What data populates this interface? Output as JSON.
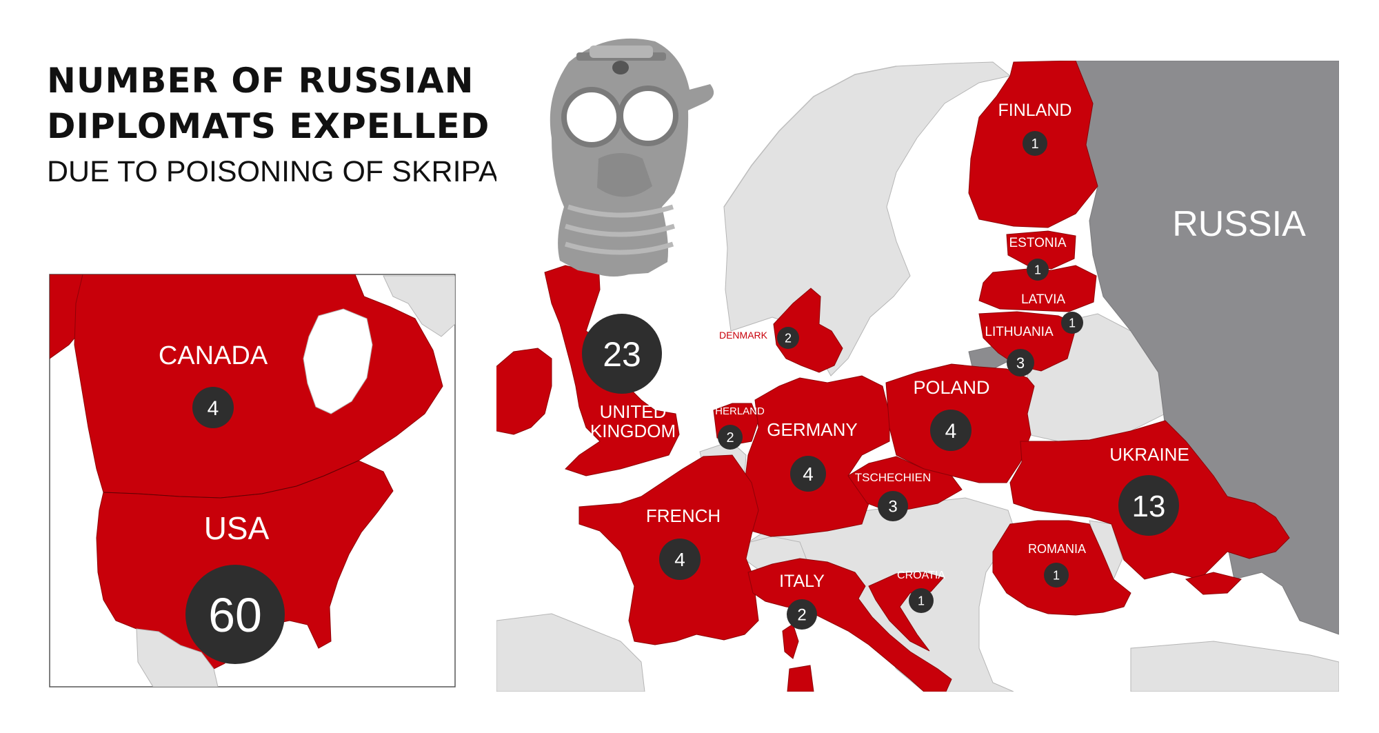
{
  "title": {
    "line1": "NUMBER OF RUSSIAN",
    "line2": "DIPLOMATS EXPELLED",
    "subtitle": "DUE TO POISONING OF SKRIPAL"
  },
  "colors": {
    "expelling_country": "#c8000a",
    "russia": "#8c8c8f",
    "other_country": "#e2e2e2",
    "sea": "#ffffff",
    "badge": "#2e2e2e",
    "label": "#ffffff",
    "gas_mask": "#9a9a9a"
  },
  "icons": [
    "gas-mask-icon"
  ],
  "russia_label": "RUSSIA",
  "countries": [
    {
      "id": "canada",
      "name": "CANADA",
      "expelled": 4
    },
    {
      "id": "usa",
      "name": "USA",
      "expelled": 60
    },
    {
      "id": "uk",
      "name": "UNITED KINGDOM",
      "name_lines": [
        "UNITED",
        "KINGDOM"
      ],
      "expelled": 23
    },
    {
      "id": "finland",
      "name": "FINLAND",
      "expelled": 1
    },
    {
      "id": "estonia",
      "name": "ESTONIA",
      "expelled": 1
    },
    {
      "id": "latvia",
      "name": "LATVIA",
      "expelled": 1
    },
    {
      "id": "lithuania",
      "name": "LITHUANIA",
      "expelled": 3
    },
    {
      "id": "denmark",
      "name": "DENMARK",
      "expelled": 2
    },
    {
      "id": "netherlands",
      "name": "NETHERLAND",
      "expelled": 2
    },
    {
      "id": "germany",
      "name": "GERMANY",
      "expelled": 4
    },
    {
      "id": "poland",
      "name": "POLAND",
      "expelled": 4
    },
    {
      "id": "czechia",
      "name": "TSCHECHIEN",
      "expelled": 3
    },
    {
      "id": "ukraine",
      "name": "UKRAINE",
      "expelled": 13
    },
    {
      "id": "france",
      "name": "FRENCH",
      "expelled": 4
    },
    {
      "id": "italy",
      "name": "ITALY",
      "expelled": 2
    },
    {
      "id": "croatia",
      "name": "CROATIA",
      "expelled": 1
    },
    {
      "id": "romania",
      "name": "ROMANIA",
      "expelled": 1
    }
  ]
}
